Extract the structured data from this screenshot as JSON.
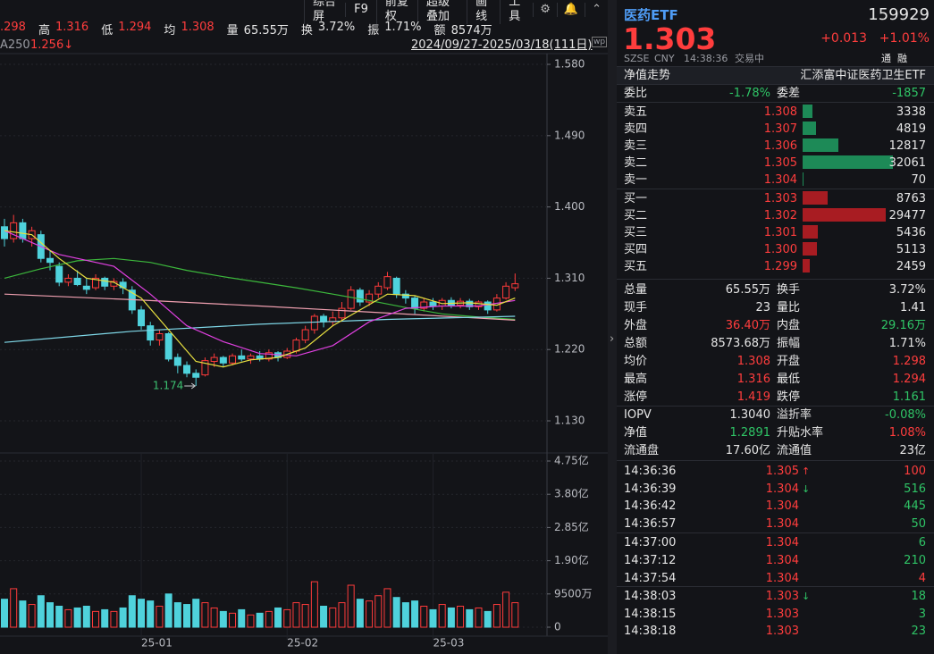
{
  "toolbar": {
    "items": [
      "综合屏",
      "F9",
      "前复权",
      "超级叠加",
      "画线",
      "工具"
    ]
  },
  "info": {
    "open_fragment": ".298",
    "fields": [
      {
        "label": "高",
        "value": "1.316"
      },
      {
        "label": "低",
        "value": "1.294"
      },
      {
        "label": "均",
        "value": "1.308"
      },
      {
        "label": "量",
        "value": "65.55万"
      },
      {
        "label": "换",
        "value": "3.72%"
      },
      {
        "label": "振",
        "value": "1.71%"
      },
      {
        "label": "额",
        "value": "8574万"
      }
    ],
    "ma_label": "A250",
    "ma_value": "1.256↓",
    "range": "2024/09/27-2025/03/18(111日)"
  },
  "chart_data": {
    "type": "candlestick",
    "up_color": "#ff3b3b",
    "down_color": "#4fd2dc",
    "xlim": [
      -0.49,
      59.5
    ],
    "ylim": [
      1.1165,
      1.5913
    ],
    "yticks": [
      {
        "value": 1.58,
        "label": "1.580"
      },
      {
        "value": 1.49,
        "label": "1.490"
      },
      {
        "value": 1.4,
        "label": "1.400"
      },
      {
        "value": 1.31,
        "label": "1.310"
      },
      {
        "value": 1.22,
        "label": "1.220"
      },
      {
        "value": 1.13,
        "label": "1.130"
      }
    ],
    "xticks": [
      {
        "value": 15,
        "label": "25-01"
      },
      {
        "value": 31,
        "label": "25-02"
      },
      {
        "value": 47,
        "label": "25-03"
      }
    ],
    "candles": [
      [
        1.375,
        1.385,
        1.35,
        1.36
      ],
      [
        1.36,
        1.39,
        1.355,
        1.38
      ],
      [
        1.38,
        1.385,
        1.355,
        1.36
      ],
      [
        1.36,
        1.375,
        1.35,
        1.37
      ],
      [
        1.365,
        1.37,
        1.33,
        1.335
      ],
      [
        1.335,
        1.345,
        1.32,
        1.33
      ],
      [
        1.325,
        1.33,
        1.3,
        1.305
      ],
      [
        1.305,
        1.315,
        1.3,
        1.31
      ],
      [
        1.31,
        1.32,
        1.3,
        1.302
      ],
      [
        1.3,
        1.31,
        1.29,
        1.296
      ],
      [
        1.298,
        1.315,
        1.295,
        1.31
      ],
      [
        1.31,
        1.312,
        1.295,
        1.3
      ],
      [
        1.3,
        1.31,
        1.295,
        1.306
      ],
      [
        1.305,
        1.31,
        1.29,
        1.298
      ],
      [
        1.295,
        1.3,
        1.265,
        1.27
      ],
      [
        1.27,
        1.275,
        1.245,
        1.25
      ],
      [
        1.25,
        1.255,
        1.225,
        1.232
      ],
      [
        1.232,
        1.245,
        1.225,
        1.24
      ],
      [
        1.24,
        1.242,
        1.205,
        1.208
      ],
      [
        1.21,
        1.215,
        1.19,
        1.2
      ],
      [
        1.2,
        1.205,
        1.185,
        1.19
      ],
      [
        1.19,
        1.195,
        1.174,
        1.185
      ],
      [
        1.188,
        1.21,
        1.186,
        1.206
      ],
      [
        1.205,
        1.215,
        1.198,
        1.21
      ],
      [
        1.21,
        1.212,
        1.198,
        1.203
      ],
      [
        1.203,
        1.215,
        1.2,
        1.212
      ],
      [
        1.212,
        1.22,
        1.205,
        1.208
      ],
      [
        1.208,
        1.215,
        1.202,
        1.212
      ],
      [
        1.212,
        1.218,
        1.205,
        1.208
      ],
      [
        1.208,
        1.22,
        1.205,
        1.216
      ],
      [
        1.216,
        1.218,
        1.205,
        1.21
      ],
      [
        1.21,
        1.222,
        1.208,
        1.218
      ],
      [
        1.218,
        1.235,
        1.215,
        1.232
      ],
      [
        1.232,
        1.25,
        1.228,
        1.245
      ],
      [
        1.245,
        1.265,
        1.24,
        1.262
      ],
      [
        1.262,
        1.265,
        1.248,
        1.255
      ],
      [
        1.255,
        1.268,
        1.25,
        1.26
      ],
      [
        1.26,
        1.28,
        1.255,
        1.272
      ],
      [
        1.272,
        1.3,
        1.27,
        1.295
      ],
      [
        1.295,
        1.298,
        1.275,
        1.28
      ],
      [
        1.28,
        1.295,
        1.275,
        1.29
      ],
      [
        1.29,
        1.305,
        1.285,
        1.3
      ],
      [
        1.298,
        1.318,
        1.295,
        1.312
      ],
      [
        1.31,
        1.312,
        1.285,
        1.29
      ],
      [
        1.29,
        1.295,
        1.278,
        1.285
      ],
      [
        1.285,
        1.288,
        1.265,
        1.272
      ],
      [
        1.272,
        1.285,
        1.268,
        1.28
      ],
      [
        1.28,
        1.285,
        1.27,
        1.275
      ],
      [
        1.275,
        1.285,
        1.27,
        1.282
      ],
      [
        1.282,
        1.286,
        1.272,
        1.276
      ],
      [
        1.276,
        1.285,
        1.272,
        1.281
      ],
      [
        1.281,
        1.284,
        1.27,
        1.274
      ],
      [
        1.274,
        1.282,
        1.27,
        1.28
      ],
      [
        1.28,
        1.282,
        1.265,
        1.27
      ],
      [
        1.27,
        1.29,
        1.268,
        1.285
      ],
      [
        1.285,
        1.305,
        1.283,
        1.3
      ],
      [
        1.298,
        1.316,
        1.294,
        1.303
      ]
    ],
    "ma_lines": [
      {
        "color": "#3cb83c",
        "x": [
          0,
          4,
          8,
          12,
          16,
          20,
          24,
          28,
          32,
          36,
          40,
          44,
          48,
          52,
          56
        ],
        "values": [
          1.31,
          1.322,
          1.332,
          1.335,
          1.33,
          1.32,
          1.312,
          1.305,
          1.298,
          1.29,
          1.282,
          1.273,
          1.265,
          1.261,
          1.258
        ]
      },
      {
        "color": "#f0a0b0",
        "x": [
          0,
          14,
          28,
          42,
          56
        ],
        "values": [
          1.29,
          1.283,
          1.275,
          1.266,
          1.257
        ]
      },
      {
        "color": "#7fd8e8",
        "x": [
          0,
          14,
          28,
          42,
          56
        ],
        "values": [
          1.229,
          1.243,
          1.252,
          1.258,
          1.262
        ]
      },
      {
        "color": "#e040e0",
        "x": [
          0,
          6,
          12,
          16,
          20,
          24,
          28,
          32,
          36,
          40,
          44,
          48,
          52,
          56
        ],
        "values": [
          1.37,
          1.34,
          1.325,
          1.29,
          1.25,
          1.23,
          1.215,
          1.212,
          1.225,
          1.255,
          1.272,
          1.275,
          1.275,
          1.282
        ]
      },
      {
        "color": "#e8e040",
        "x": [
          0,
          3,
          6,
          9,
          12,
          15,
          18,
          21,
          24,
          27,
          30,
          33,
          36,
          39,
          42,
          45,
          48,
          51,
          54,
          56
        ],
        "values": [
          1.37,
          1.365,
          1.335,
          1.31,
          1.305,
          1.285,
          1.245,
          1.205,
          1.198,
          1.207,
          1.21,
          1.222,
          1.25,
          1.27,
          1.29,
          1.288,
          1.278,
          1.279,
          1.276,
          1.285
        ]
      }
    ],
    "annotation": {
      "x": 21,
      "y": 1.174
    },
    "volumes": [
      8000,
      11000,
      7500,
      6500,
      9000,
      7000,
      6000,
      5000,
      5500,
      6000,
      4500,
      5000,
      4500,
      5500,
      9000,
      8000,
      7500,
      6000,
      9500,
      7000,
      6500,
      8000,
      7000,
      5500,
      4500,
      4000,
      5000,
      3500,
      4000,
      4500,
      5500,
      5000,
      7000,
      6500,
      13000,
      6000,
      5500,
      7000,
      12000,
      8000,
      7500,
      9000,
      11000,
      8500,
      7000,
      7500,
      6000,
      5000,
      6500,
      5500,
      6000,
      5000,
      5500,
      4500,
      6500,
      10000,
      7000
    ],
    "volume_ylim": [
      -2554,
      49543
    ],
    "volume_yticks": [
      {
        "value": 47500,
        "label": "4.75亿"
      },
      {
        "value": 38000,
        "label": "3.80亿"
      },
      {
        "value": 28500,
        "label": "2.85亿"
      },
      {
        "value": 19000,
        "label": "1.90亿"
      },
      {
        "value": 9500,
        "label": "9500万"
      },
      0
    ]
  },
  "quote": {
    "name": "医药ETF",
    "code": "159929",
    "price": "1.303",
    "change": "+0.013",
    "change_pct": "+1.01%",
    "exchange": "SZSE",
    "currency": "CNY",
    "time": "14:38:36",
    "status": "交易中",
    "badges": [
      "通",
      "融"
    ],
    "tab": "净值走势",
    "fund_name": "汇添富中证医药卫生ETF",
    "weibi_label": "委比",
    "weibi": "-1.78%",
    "weicha_label": "委差",
    "weicha": "-1857",
    "asks": [
      {
        "label": "卖五",
        "price": "1.308",
        "volume": 3338
      },
      {
        "label": "卖四",
        "price": "1.307",
        "volume": 4819
      },
      {
        "label": "卖三",
        "price": "1.306",
        "volume": 12817
      },
      {
        "label": "卖二",
        "price": "1.305",
        "volume": 32061
      },
      {
        "label": "卖一",
        "price": "1.304",
        "volume": 70
      }
    ],
    "bids": [
      {
        "label": "买一",
        "price": "1.303",
        "volume": 8763
      },
      {
        "label": "买二",
        "price": "1.302",
        "volume": 29477
      },
      {
        "label": "买三",
        "price": "1.301",
        "volume": 5436
      },
      {
        "label": "买四",
        "price": "1.300",
        "volume": 5113
      },
      {
        "label": "买五",
        "price": "1.299",
        "volume": 2459
      }
    ],
    "stats": [
      [
        "总量",
        "65.55万",
        "换手",
        "3.72%"
      ],
      [
        "现手",
        "23",
        "量比",
        "1.41"
      ],
      [
        "外盘",
        "36.40万",
        "内盘",
        "29.16万"
      ],
      [
        "总额",
        "8573.68万",
        "振幅",
        "1.71%"
      ],
      [
        "均价",
        "1.308",
        "开盘",
        "1.298"
      ],
      [
        "最高",
        "1.316",
        "最低",
        "1.294"
      ],
      [
        "涨停",
        "1.419",
        "跌停",
        "1.161"
      ]
    ],
    "nav": [
      [
        "IOPV",
        "1.3040",
        "溢折率",
        "-0.08%"
      ],
      [
        "净值",
        "1.2891",
        "升贴水率",
        "1.08%"
      ],
      [
        "流通盘",
        "17.60亿",
        "流通值",
        "23亿"
      ]
    ],
    "trades": [
      [
        "14:36:36",
        "1.305",
        "100"
      ],
      [
        "14:36:39",
        "1.304",
        "516"
      ],
      [
        "14:36:42",
        "1.304",
        "445"
      ],
      [
        "14:36:57",
        "1.304",
        "50"
      ],
      [
        "14:37:00",
        "1.304",
        "6"
      ],
      [
        "14:37:12",
        "1.304",
        "210"
      ],
      [
        "14:37:54",
        "1.304",
        "4"
      ],
      [
        "14:38:03",
        "1.303",
        "18"
      ],
      [
        "14:38:15",
        "1.303",
        "3"
      ],
      [
        "14:38:18",
        "1.303",
        "23"
      ]
    ]
  }
}
